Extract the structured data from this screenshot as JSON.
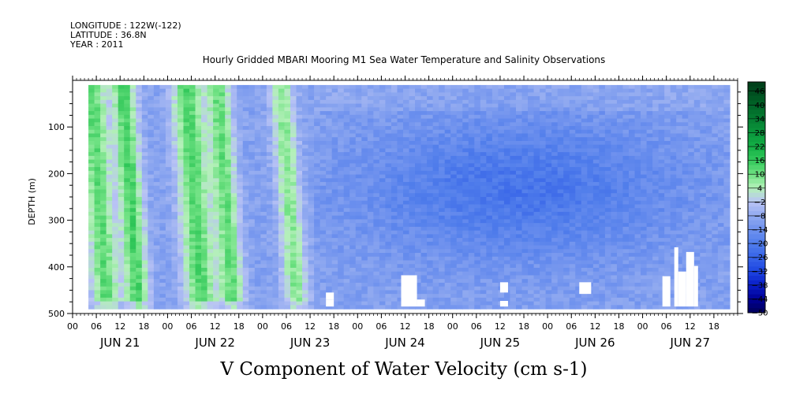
{
  "header": {
    "longitude": "LONGITUDE : 122W(-122)",
    "latitude": "LATITUDE : 36.8N",
    "year": "YEAR : 2011"
  },
  "chart_data": {
    "type": "heatmap",
    "title": "Hourly Gridded MBARI Mooring M1 Sea Water Temperature and Salinity Observations",
    "xlabel": "V Component of Water Velocity (cm s-1)",
    "ylabel": "DEPTH (m)",
    "x_hour_ticks": [
      "00",
      "06",
      "12",
      "18",
      "00",
      "06",
      "12",
      "18",
      "00",
      "06",
      "12",
      "18",
      "00",
      "06",
      "12",
      "18",
      "00",
      "06",
      "12",
      "18",
      "00",
      "06",
      "12",
      "18",
      "00",
      "06",
      "12",
      "18"
    ],
    "x_day_labels": [
      "JUN 21",
      "JUN 22",
      "JUN 23",
      "JUN 24",
      "JUN 25",
      "JUN 26",
      "JUN 27"
    ],
    "x_range_hours": [
      0,
      168
    ],
    "data_hours": [
      4,
      166
    ],
    "y_ticks": [
      100,
      200,
      300,
      400,
      500
    ],
    "y_tick_labels": [
      "100",
      "200",
      "300",
      "400",
      "500"
    ],
    "ylim": [
      500,
      0
    ],
    "data_depth_range": [
      10,
      485
    ],
    "colorbar": {
      "levels": [
        46,
        40,
        34,
        28,
        22,
        16,
        10,
        4,
        -2,
        -8,
        -14,
        -20,
        -26,
        -32,
        -38,
        -44,
        -50
      ],
      "labels": [
        "46",
        "40",
        "34",
        "28",
        "22",
        "16",
        "10",
        "4",
        "−2",
        "−8",
        "−14",
        "−20",
        "−26",
        "−32",
        "−38",
        "−44",
        "−50"
      ],
      "range": [
        -50,
        50
      ]
    },
    "field": {
      "description_free": true,
      "bands": [
        {
          "hour": 6,
          "halfwidth": 3.5,
          "value": 12
        },
        {
          "hour": 14,
          "halfwidth": 3,
          "value": 14
        },
        {
          "hour": 30,
          "halfwidth": 4,
          "value": 13
        },
        {
          "hour": 38,
          "halfwidth": 3,
          "value": 11
        },
        {
          "hour": 54,
          "halfwidth": 3,
          "value": 8
        }
      ],
      "background_value": -10,
      "trough_center_hour": 112,
      "trough_value": -22
    },
    "missing_blocks": [
      {
        "h0": 64,
        "h1": 66,
        "d0": 455,
        "d1": 470
      },
      {
        "h0": 64,
        "h1": 66,
        "d0": 470,
        "d1": 485
      },
      {
        "h0": 83,
        "h1": 87,
        "d0": 418,
        "d1": 485
      },
      {
        "h0": 87,
        "h1": 89,
        "d0": 470,
        "d1": 485
      },
      {
        "h0": 108,
        "h1": 110,
        "d0": 433,
        "d1": 455
      },
      {
        "h0": 108,
        "h1": 110,
        "d0": 473,
        "d1": 485
      },
      {
        "h0": 128,
        "h1": 131,
        "d0": 433,
        "d1": 458
      },
      {
        "h0": 149,
        "h1": 151,
        "d0": 420,
        "d1": 485
      },
      {
        "h0": 152,
        "h1": 153,
        "d0": 358,
        "d1": 485
      },
      {
        "h0": 153,
        "h1": 155,
        "d0": 410,
        "d1": 485
      },
      {
        "h0": 155,
        "h1": 157,
        "d0": 368,
        "d1": 485
      },
      {
        "h0": 157,
        "h1": 158,
        "d0": 398,
        "d1": 485
      }
    ]
  }
}
